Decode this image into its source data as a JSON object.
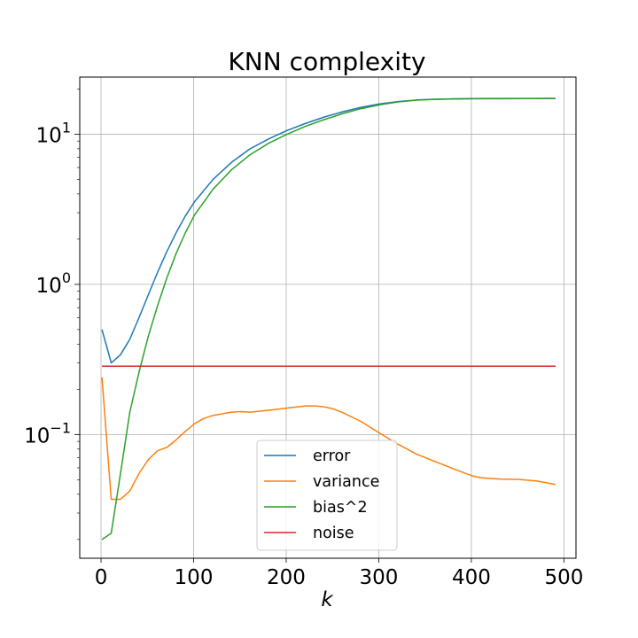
{
  "chart_data": {
    "type": "line",
    "title": "KNN complexity",
    "xlabel": "k",
    "ylabel": "",
    "yscale": "log",
    "xlim": [
      -23,
      513
    ],
    "ylim": [
      0.015,
      24
    ],
    "grid": true,
    "legend_position": "lower-center",
    "x_ticks": [
      0,
      100,
      200,
      300,
      400,
      500
    ],
    "x_tick_labels": [
      "0",
      "100",
      "200",
      "300",
      "400",
      "500"
    ],
    "y_ticks": [
      0.1,
      1,
      10
    ],
    "y_tick_labels": [
      {
        "base": "10",
        "exp": "−1"
      },
      {
        "base": "10",
        "exp": "0"
      },
      {
        "base": "10",
        "exp": "1"
      }
    ],
    "series": [
      {
        "name": "error",
        "color": "#1f77b4",
        "x": [
          1,
          11,
          21,
          31,
          41,
          51,
          61,
          71,
          81,
          91,
          101,
          121,
          141,
          161,
          181,
          201,
          221,
          241,
          261,
          281,
          301,
          321,
          341,
          361,
          381,
          401,
          421,
          441,
          461,
          481,
          491
        ],
        "y": [
          0.5,
          0.3,
          0.34,
          0.43,
          0.6,
          0.85,
          1.2,
          1.65,
          2.2,
          2.85,
          3.55,
          5.0,
          6.5,
          8.0,
          9.3,
          10.6,
          11.8,
          13.0,
          14.1,
          15.1,
          15.9,
          16.5,
          16.9,
          17.1,
          17.2,
          17.25,
          17.28,
          17.3,
          17.3,
          17.32,
          17.32
        ]
      },
      {
        "name": "variance",
        "color": "#ff7f0e",
        "x": [
          1,
          11,
          21,
          31,
          41,
          51,
          61,
          71,
          81,
          91,
          101,
          111,
          121,
          141,
          151,
          161,
          181,
          201,
          221,
          231,
          241,
          251,
          261,
          281,
          301,
          321,
          341,
          361,
          381,
          401,
          411,
          431,
          451,
          471,
          491
        ],
        "y": [
          0.24,
          0.037,
          0.037,
          0.042,
          0.055,
          0.068,
          0.078,
          0.082,
          0.092,
          0.105,
          0.118,
          0.128,
          0.134,
          0.141,
          0.142,
          0.141,
          0.145,
          0.15,
          0.155,
          0.155,
          0.153,
          0.148,
          0.14,
          0.122,
          0.102,
          0.086,
          0.074,
          0.066,
          0.059,
          0.053,
          0.0515,
          0.0505,
          0.0503,
          0.049,
          0.0465
        ]
      },
      {
        "name": "bias^2",
        "color": "#2ca02c",
        "x": [
          1,
          11,
          21,
          31,
          41,
          51,
          61,
          71,
          81,
          91,
          101,
          121,
          141,
          161,
          181,
          201,
          221,
          241,
          261,
          281,
          301,
          321,
          341,
          361,
          381,
          401,
          421,
          441,
          461,
          481,
          491
        ],
        "y": [
          0.02,
          0.022,
          0.055,
          0.14,
          0.26,
          0.45,
          0.72,
          1.1,
          1.6,
          2.2,
          2.9,
          4.3,
          5.8,
          7.3,
          8.7,
          10.0,
          11.3,
          12.5,
          13.7,
          14.8,
          15.7,
          16.4,
          16.85,
          17.05,
          17.15,
          17.2,
          17.22,
          17.24,
          17.25,
          17.26,
          17.26
        ]
      },
      {
        "name": "noise",
        "color": "#d62728",
        "x": [
          1,
          491
        ],
        "y": [
          0.285,
          0.285
        ]
      }
    ]
  }
}
